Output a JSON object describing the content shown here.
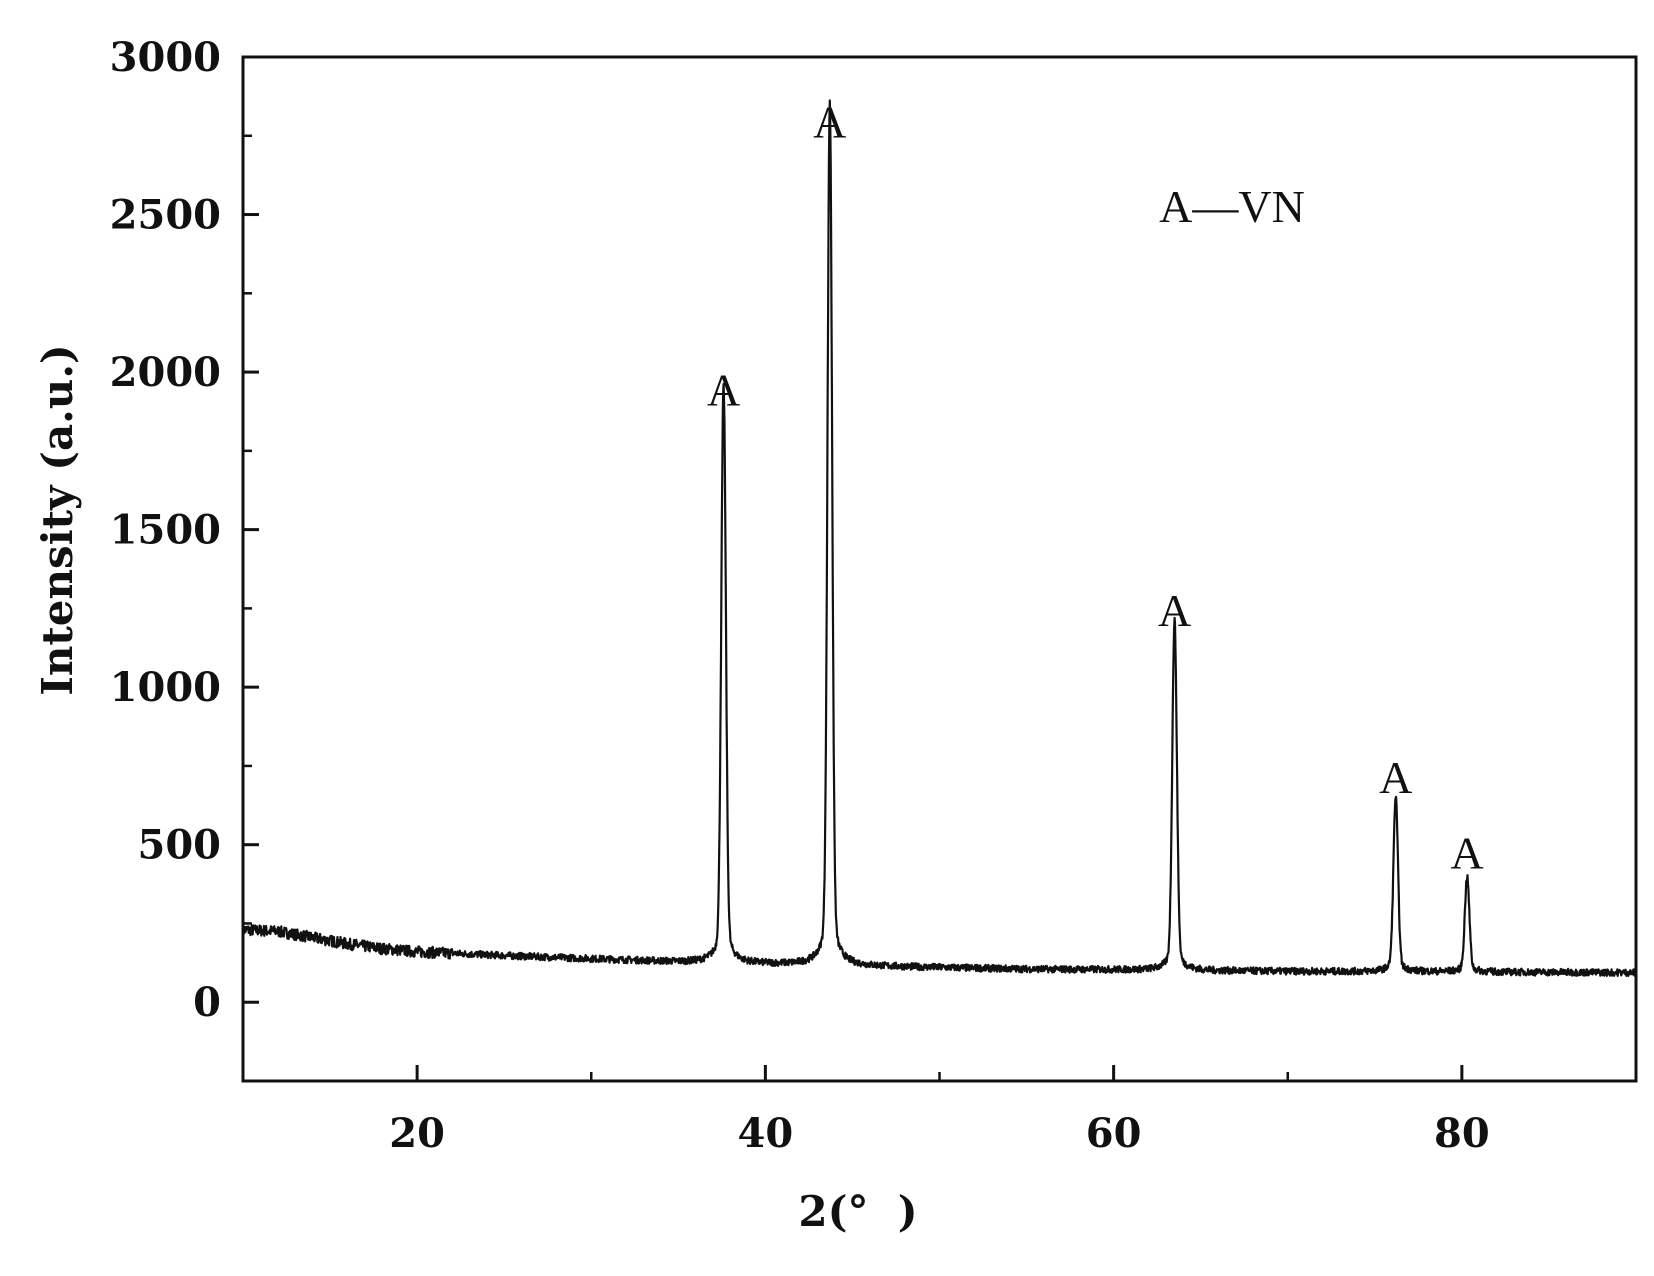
{
  "chart_data": {
    "type": "line",
    "title": "",
    "xlabel": "2(°  )",
    "ylabel": "Intensity (a.u.)",
    "xlim": [
      10,
      90
    ],
    "ylim": [
      -250,
      3000
    ],
    "x_ticks": [
      20,
      40,
      60,
      80
    ],
    "y_ticks": [
      0,
      500,
      1000,
      1500,
      2000,
      2500,
      3000
    ],
    "legend": {
      "text": "A—VN",
      "position": "top-right"
    },
    "baseline": [
      [
        10,
        230
      ],
      [
        12,
        225
      ],
      [
        14,
        205
      ],
      [
        16,
        185
      ],
      [
        18,
        170
      ],
      [
        20,
        160
      ],
      [
        25,
        148
      ],
      [
        30,
        138
      ],
      [
        35,
        128
      ],
      [
        37,
        125
      ],
      [
        39,
        122
      ],
      [
        43,
        118
      ],
      [
        45,
        115
      ],
      [
        50,
        110
      ],
      [
        55,
        105
      ],
      [
        60,
        103
      ],
      [
        65,
        100
      ],
      [
        70,
        98
      ],
      [
        75,
        97
      ],
      [
        80,
        96
      ],
      [
        85,
        95
      ],
      [
        90,
        94
      ]
    ],
    "peaks": [
      {
        "x": 37.6,
        "y": 1850,
        "label": "A"
      },
      {
        "x": 43.7,
        "y": 2700,
        "label": "A"
      },
      {
        "x": 63.5,
        "y": 1150,
        "label": "A"
      },
      {
        "x": 76.2,
        "y": 620,
        "label": "A"
      },
      {
        "x": 80.3,
        "y": 380,
        "label": "A"
      }
    ],
    "line_color": "#111111"
  }
}
